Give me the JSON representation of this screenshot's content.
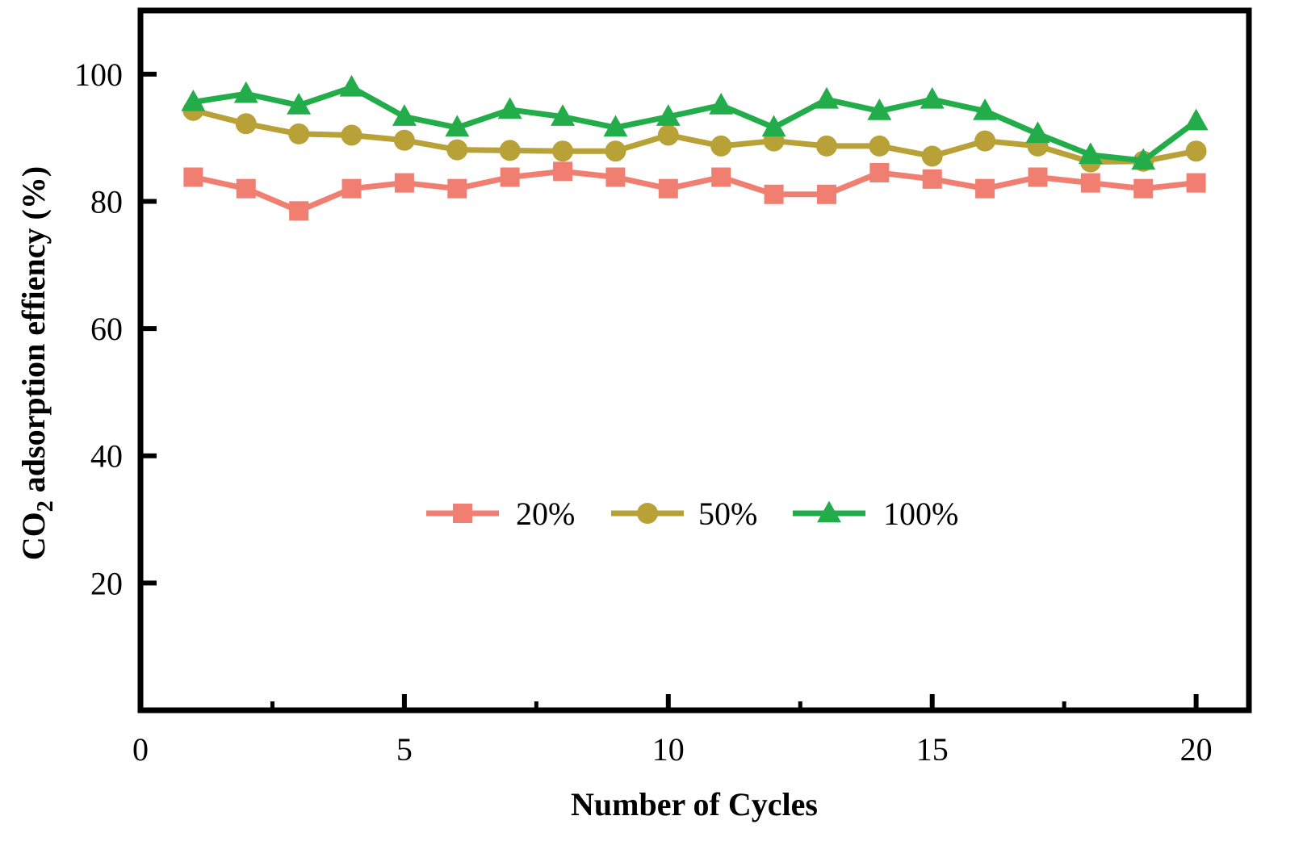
{
  "chart_data": {
    "type": "line",
    "xlabel": "Number of Cycles",
    "ylabel": "CO2 adsorption effiency (%)",
    "ylabel_parts": {
      "main": "CO",
      "subscript": "2",
      "rest": " adsorption effiency (%)"
    },
    "xlim": [
      0,
      21
    ],
    "ylim": [
      0,
      110
    ],
    "xticks": [
      0,
      5,
      10,
      15,
      20
    ],
    "xticks_minor": [
      2.5,
      7.5,
      12.5,
      17.5
    ],
    "yticks": [
      20,
      40,
      60,
      80,
      100
    ],
    "grid": false,
    "legend_position": "center",
    "x": [
      1,
      2,
      3,
      4,
      5,
      6,
      7,
      8,
      9,
      10,
      11,
      12,
      13,
      14,
      15,
      16,
      17,
      18,
      19,
      20
    ],
    "series": [
      {
        "name": "20%",
        "marker": "square",
        "color": "#F07F72",
        "values": [
          83.8,
          82.0,
          78.5,
          82.0,
          82.9,
          82.0,
          83.8,
          84.7,
          83.8,
          82.0,
          83.8,
          81.1,
          81.1,
          84.5,
          83.5,
          82.0,
          83.8,
          82.9,
          82.0,
          82.9
        ]
      },
      {
        "name": "50%",
        "marker": "circle",
        "color": "#B8A137",
        "values": [
          94.3,
          92.2,
          90.6,
          90.4,
          89.6,
          88.1,
          88.0,
          87.9,
          87.9,
          90.4,
          88.7,
          89.5,
          88.7,
          88.7,
          87.1,
          89.5,
          88.7,
          86.2,
          86.3,
          87.9
        ]
      },
      {
        "name": "100%",
        "marker": "triangle",
        "color": "#23AD4A",
        "values": [
          95.6,
          96.9,
          95.1,
          97.9,
          93.3,
          91.6,
          94.4,
          93.3,
          91.6,
          93.3,
          95.1,
          91.6,
          96.0,
          94.2,
          96.0,
          94.2,
          90.6,
          87.3,
          86.4,
          92.6
        ]
      }
    ]
  }
}
